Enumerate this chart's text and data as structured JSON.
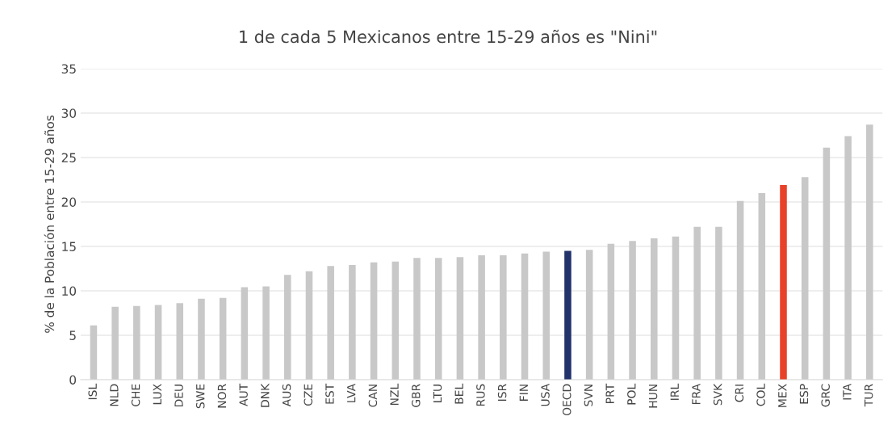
{
  "chart_data": {
    "type": "bar",
    "title": "1 de cada 5 Mexicanos entre 15-29 años es \"Nini\"",
    "ylabel": "% de la Población entre 15-29 años",
    "categories": [
      "ISL",
      "NLD",
      "CHE",
      "LUX",
      "DEU",
      "SWE",
      "NOR",
      "AUT",
      "DNK",
      "AUS",
      "CZE",
      "EST",
      "LVA",
      "CAN",
      "NZL",
      "GBR",
      "LTU",
      "BEL",
      "RUS",
      "ISR",
      "FIN",
      "USA",
      "OECD",
      "SVN",
      "PRT",
      "POL",
      "HUN",
      "IRL",
      "FRA",
      "SVK",
      "CRI",
      "COL",
      "MEX",
      "ESP",
      "GRC",
      "ITA",
      "TUR"
    ],
    "values": [
      6.1,
      8.2,
      8.3,
      8.4,
      8.6,
      9.1,
      9.2,
      10.4,
      10.5,
      11.8,
      12.2,
      12.8,
      12.9,
      13.2,
      13.3,
      13.7,
      13.7,
      13.8,
      14.0,
      14.0,
      14.2,
      14.4,
      14.5,
      14.6,
      15.3,
      15.6,
      15.9,
      16.1,
      17.2,
      17.2,
      20.1,
      21.0,
      21.9,
      22.8,
      26.1,
      27.4,
      28.7
    ],
    "colors": [
      "#c8c8c8",
      "#c8c8c8",
      "#c8c8c8",
      "#c8c8c8",
      "#c8c8c8",
      "#c8c8c8",
      "#c8c8c8",
      "#c8c8c8",
      "#c8c8c8",
      "#c8c8c8",
      "#c8c8c8",
      "#c8c8c8",
      "#c8c8c8",
      "#c8c8c8",
      "#c8c8c8",
      "#c8c8c8",
      "#c8c8c8",
      "#c8c8c8",
      "#c8c8c8",
      "#c8c8c8",
      "#c8c8c8",
      "#c8c8c8",
      "#22336b",
      "#c8c8c8",
      "#c8c8c8",
      "#c8c8c8",
      "#c8c8c8",
      "#c8c8c8",
      "#c8c8c8",
      "#c8c8c8",
      "#c8c8c8",
      "#c8c8c8",
      "#e8412a",
      "#c8c8c8",
      "#c8c8c8",
      "#c8c8c8",
      "#c8c8c8"
    ],
    "ylim": [
      0,
      35
    ],
    "yticks": [
      0,
      5,
      10,
      15,
      20,
      25,
      30,
      35
    ],
    "grid": "y"
  }
}
